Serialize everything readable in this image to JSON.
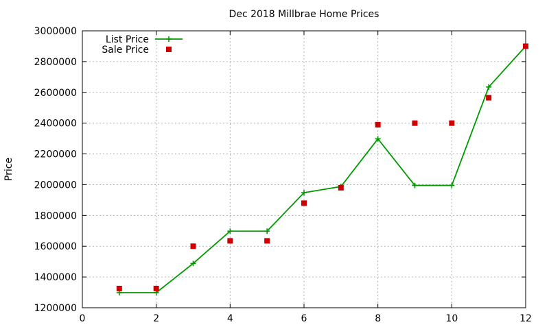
{
  "chart_data": {
    "type": "line",
    "title": "Dec 2018 Millbrae Home Prices",
    "xlabel": "",
    "ylabel": "Price",
    "xlim": [
      0,
      12
    ],
    "ylim": [
      1200000,
      3000000
    ],
    "x_ticks": [
      0,
      2,
      4,
      6,
      8,
      10,
      12
    ],
    "y_ticks": [
      1200000,
      1400000,
      1600000,
      1800000,
      2000000,
      2200000,
      2400000,
      2600000,
      2800000,
      3000000
    ],
    "grid": true,
    "legend_position": "top-left",
    "series": [
      {
        "name": "List Price",
        "style": "line-with-plus-markers",
        "color": "#009900",
        "points": [
          {
            "x": 1,
            "y": 1298000
          },
          {
            "x": 2,
            "y": 1298000
          },
          {
            "x": 3,
            "y": 1488000
          },
          {
            "x": 4,
            "y": 1698000
          },
          {
            "x": 5,
            "y": 1698000
          },
          {
            "x": 6,
            "y": 1948000
          },
          {
            "x": 7,
            "y": 1988000
          },
          {
            "x": 8,
            "y": 2298000
          },
          {
            "x": 9,
            "y": 1995000
          },
          {
            "x": 10,
            "y": 1995000
          },
          {
            "x": 11,
            "y": 2635000
          },
          {
            "x": 12,
            "y": 2900000
          }
        ]
      },
      {
        "name": "Sale Price",
        "style": "square-points",
        "color": "#cc0000",
        "points": [
          {
            "x": 1,
            "y": 1325000
          },
          {
            "x": 2,
            "y": 1325000
          },
          {
            "x": 3,
            "y": 1600000
          },
          {
            "x": 4,
            "y": 1635000
          },
          {
            "x": 5,
            "y": 1635000
          },
          {
            "x": 6,
            "y": 1880000
          },
          {
            "x": 7,
            "y": 1980000
          },
          {
            "x": 8,
            "y": 2390000
          },
          {
            "x": 9,
            "y": 2400000
          },
          {
            "x": 10,
            "y": 2400000
          },
          {
            "x": 11,
            "y": 2565000
          },
          {
            "x": 12,
            "y": 2900000
          }
        ]
      }
    ]
  }
}
